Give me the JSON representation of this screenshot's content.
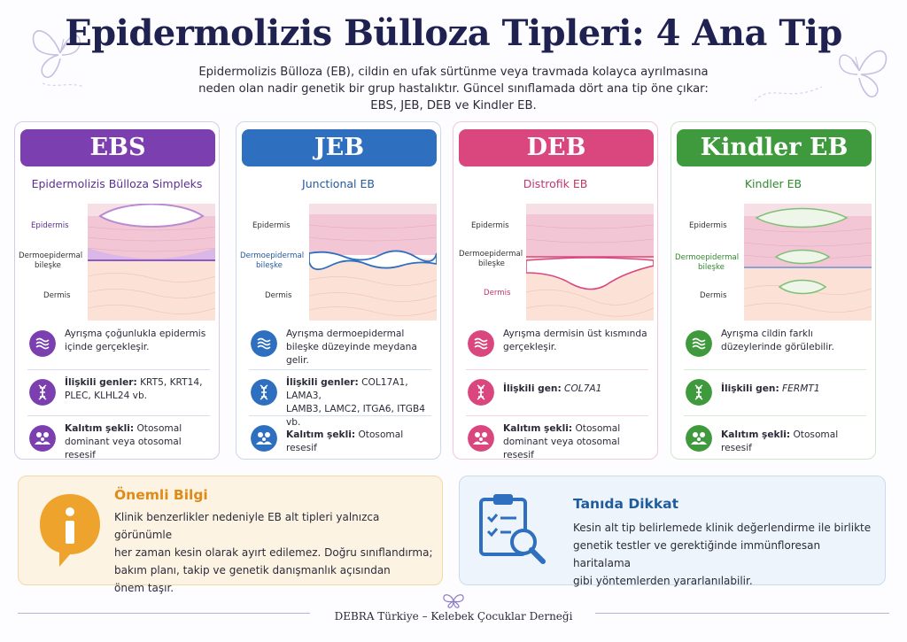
{
  "title": "Epidermolizis Bülloza Tipleri: 4 Ana Tip",
  "intro_lines": [
    "Epidermolizis Bülloza (EB), cildin en ufak sürtünme veya travmada kolayca ayrılmasına",
    "neden olan nadir genetik bir grup hastalıktır. Güncel sınıflamada dört ana tip öne çıkar:",
    "EBS, JEB, DEB ve Kindler EB."
  ],
  "colors": {
    "ebs": "#7b3fb0",
    "jeb": "#2f6fbf",
    "deb": "#d9477e",
    "kindler": "#3e9a3c",
    "info_accent": "#e89b2a",
    "diag_accent": "#2f6fbf"
  },
  "cards": [
    {
      "abbr": "EBS",
      "name": "Epidermolizis Bülloza Simpleks",
      "labels": [
        "Epidermis",
        "Dermoepidermal",
        "bileşke",
        "Dermis"
      ],
      "rows": [
        {
          "icon": "waves-icon",
          "lines": [
            "Ayrışma çoğunlukla epidermis",
            "içinde gerçekleşir."
          ]
        },
        {
          "icon": "dna-icon",
          "label": "İlişkili genler:",
          "lines": [
            " KRT5, KRT14,",
            "PLEC, KLHL24 vb."
          ]
        },
        {
          "icon": "family-icon",
          "label": "Kalıtım şekli:",
          "lines": [
            " Otosomal",
            "dominant veya otosomal resesif"
          ]
        }
      ]
    },
    {
      "abbr": "JEB",
      "name": "Junctional EB",
      "labels": [
        "Epidermis",
        "Dermoepidermal",
        "bileşke",
        "Dermis"
      ],
      "rows": [
        {
          "icon": "waves-icon",
          "lines": [
            "Ayrışma dermoepidermal",
            "bileşke düzeyinde meydana gelir."
          ]
        },
        {
          "icon": "dna-icon",
          "label": "İlişkili genler:",
          "lines": [
            " COL17A1, LAMA3,",
            "LAMB3, LAMC2, ITGA6, ITGB4 vb."
          ]
        },
        {
          "icon": "family-icon",
          "label": "Kalıtım şekli:",
          "lines": [
            " Otosomal resesif"
          ]
        }
      ]
    },
    {
      "abbr": "DEB",
      "name": "Distrofik EB",
      "labels": [
        "Epidermis",
        "Dermoepidermal",
        "bileşke",
        "Dermis"
      ],
      "rows": [
        {
          "icon": "waves-icon",
          "lines": [
            "Ayrışma dermisin üst kısmında",
            "gerçekleşir."
          ]
        },
        {
          "icon": "dna-icon",
          "label": "İlişkili gen:",
          "lines": [
            " COL7A1"
          ]
        },
        {
          "icon": "family-icon",
          "label": "Kalıtım şekli:",
          "lines": [
            " Otosomal",
            "dominant veya otosomal resesif"
          ]
        }
      ]
    },
    {
      "abbr": "Kindler EB",
      "name": "Kindler EB",
      "labels": [
        "Epidermis",
        "Dermoepidermal",
        "bileşke",
        "Dermis"
      ],
      "rows": [
        {
          "icon": "waves-icon",
          "lines": [
            "Ayrışma cildin farklı",
            "düzeylerinde görülebilir."
          ]
        },
        {
          "icon": "dna-icon",
          "label": "İlişkili gen:",
          "lines": [
            " FERMT1"
          ]
        },
        {
          "icon": "family-icon",
          "label": "Kalıtım şekli:",
          "lines": [
            " Otosomal resesif"
          ]
        }
      ]
    }
  ],
  "info_box": {
    "title": "Önemli Bilgi",
    "lines": [
      "Klinik benzerlikler nedeniyle EB alt tipleri yalnızca görünümle",
      "her zaman kesin olarak ayırt edilemez. Doğru sınıflandırma;",
      "bakım planı, takip ve genetik danışmanlık açısından",
      "önem taşır."
    ]
  },
  "diag_box": {
    "title": "Tanıda Dikkat",
    "lines": [
      "Kesin alt tip belirlemede klinik değerlendirme ile birlikte",
      "genetik testler ve gerektiğinde immünfloresan haritalama",
      "gibi yöntemlerden yararlanılabilir."
    ]
  },
  "footer": "DEBRA Türkiye – Kelebek Çocuklar Derneği"
}
